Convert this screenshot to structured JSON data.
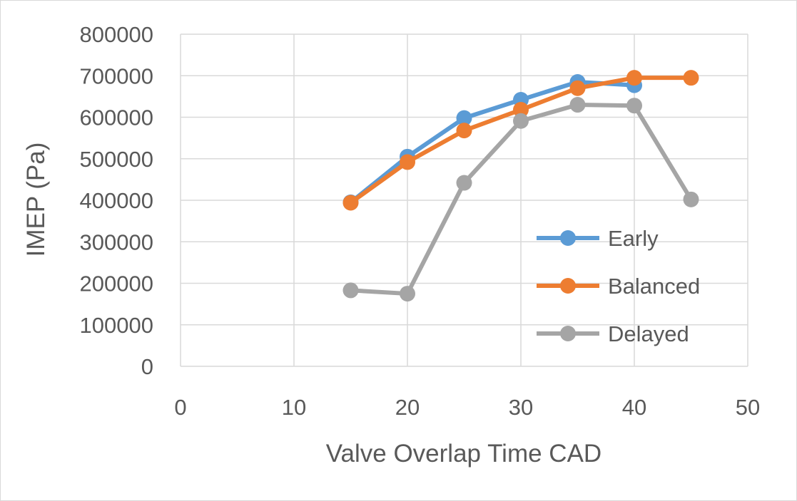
{
  "chart_data": {
    "type": "scatter",
    "title": "",
    "xlabel": "Valve Overlap Time CAD",
    "ylabel": "IMEP (Pa)",
    "xlim": [
      0,
      50
    ],
    "ylim": [
      0,
      800000
    ],
    "xticks": [
      0,
      10,
      20,
      30,
      40,
      50
    ],
    "yticks": [
      0,
      100000,
      200000,
      300000,
      400000,
      500000,
      600000,
      700000,
      800000
    ],
    "grid": true,
    "legend_position": "right-inside",
    "series": [
      {
        "name": "Early",
        "color": "#5b9bd5",
        "x": [
          15,
          20,
          25,
          30,
          35,
          40
        ],
        "y": [
          395000,
          505000,
          598000,
          642000,
          685000,
          677000
        ]
      },
      {
        "name": "Balanced",
        "color": "#ed7d31",
        "x": [
          15,
          20,
          25,
          30,
          35,
          40,
          45
        ],
        "y": [
          394000,
          492000,
          568000,
          618000,
          670000,
          695000,
          695000
        ]
      },
      {
        "name": "Delayed",
        "color": "#a5a5a5",
        "x": [
          15,
          20,
          25,
          30,
          35,
          40,
          45
        ],
        "y": [
          183000,
          175000,
          442000,
          591000,
          630000,
          628000,
          402000
        ]
      }
    ]
  }
}
